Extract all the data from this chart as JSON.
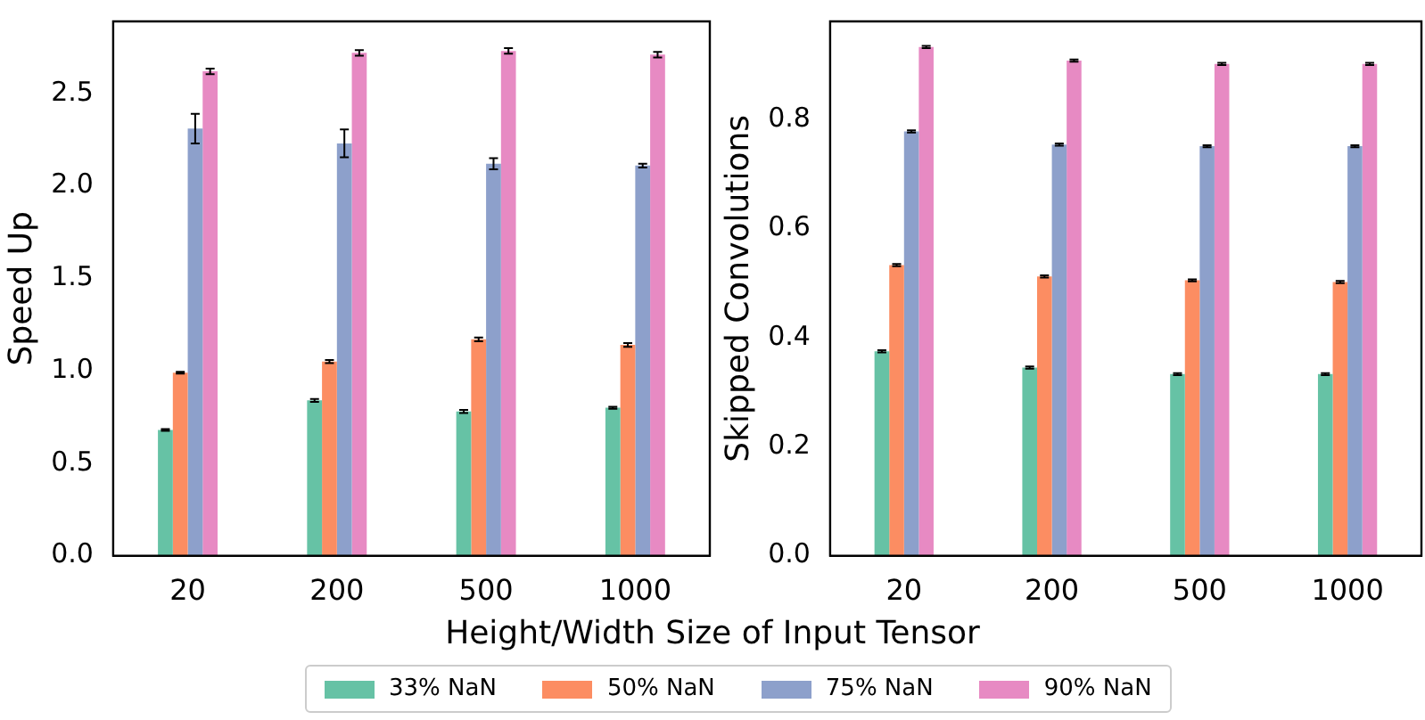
{
  "chart_data": [
    {
      "type": "bar",
      "xlabel": "Height/Width Size of Input Tensor",
      "ylabel": "Speed Up",
      "categories": [
        "20",
        "200",
        "500",
        "1000"
      ],
      "ylim": [
        0,
        2.89
      ],
      "yticks": [
        {
          "value": 0,
          "label": "0.0"
        },
        0.5,
        {
          "value": 1,
          "label": "1.0"
        },
        1.5,
        {
          "value": 2,
          "label": "2.0"
        },
        2.5
      ],
      "grid": false,
      "legend": "bottom",
      "series": [
        {
          "name": "33% NaN",
          "color": "#66c2a5",
          "values": [
            0.68,
            0.84,
            0.78,
            0.8
          ],
          "errors": [
            0.005,
            0.008,
            0.008,
            0.006
          ]
        },
        {
          "name": "50% NaN",
          "color": "#fc8d62",
          "values": [
            0.99,
            1.05,
            1.17,
            1.14
          ],
          "errors": [
            0.005,
            0.008,
            0.01,
            0.01
          ]
        },
        {
          "name": "75% NaN",
          "color": "#8da0cb",
          "values": [
            2.31,
            2.23,
            2.12,
            2.11
          ],
          "errors": [
            0.08,
            0.075,
            0.03,
            0.01
          ]
        },
        {
          "name": "90% NaN",
          "color": "#e78ac3",
          "values": [
            2.62,
            2.72,
            2.73,
            2.71
          ],
          "errors": [
            0.015,
            0.015,
            0.015,
            0.015
          ]
        }
      ]
    },
    {
      "type": "bar",
      "ylabel": "Skipped Convolutions",
      "categories": [
        "20",
        "200",
        "500",
        "1000"
      ],
      "ylim": [
        0,
        0.98
      ],
      "yticks": [
        {
          "value": 0,
          "label": "0.0"
        },
        0.2,
        0.4,
        0.6,
        0.8
      ],
      "grid": false,
      "series": [
        {
          "color": "#66c2a5",
          "values": [
            0.375,
            0.345,
            0.333,
            0.333
          ],
          "errors": [
            0.002,
            0.002,
            0.002,
            0.002
          ]
        },
        {
          "color": "#fc8d62",
          "values": [
            0.533,
            0.512,
            0.505,
            0.502
          ],
          "errors": [
            0.002,
            0.002,
            0.002,
            0.002
          ]
        },
        {
          "color": "#8da0cb",
          "values": [
            0.778,
            0.754,
            0.751,
            0.751
          ],
          "errors": [
            0.002,
            0.002,
            0.002,
            0.002
          ]
        },
        {
          "color": "#e78ac3",
          "values": [
            0.933,
            0.908,
            0.902,
            0.902
          ],
          "errors": [
            0.002,
            0.002,
            0.002,
            0.002
          ]
        }
      ]
    }
  ]
}
